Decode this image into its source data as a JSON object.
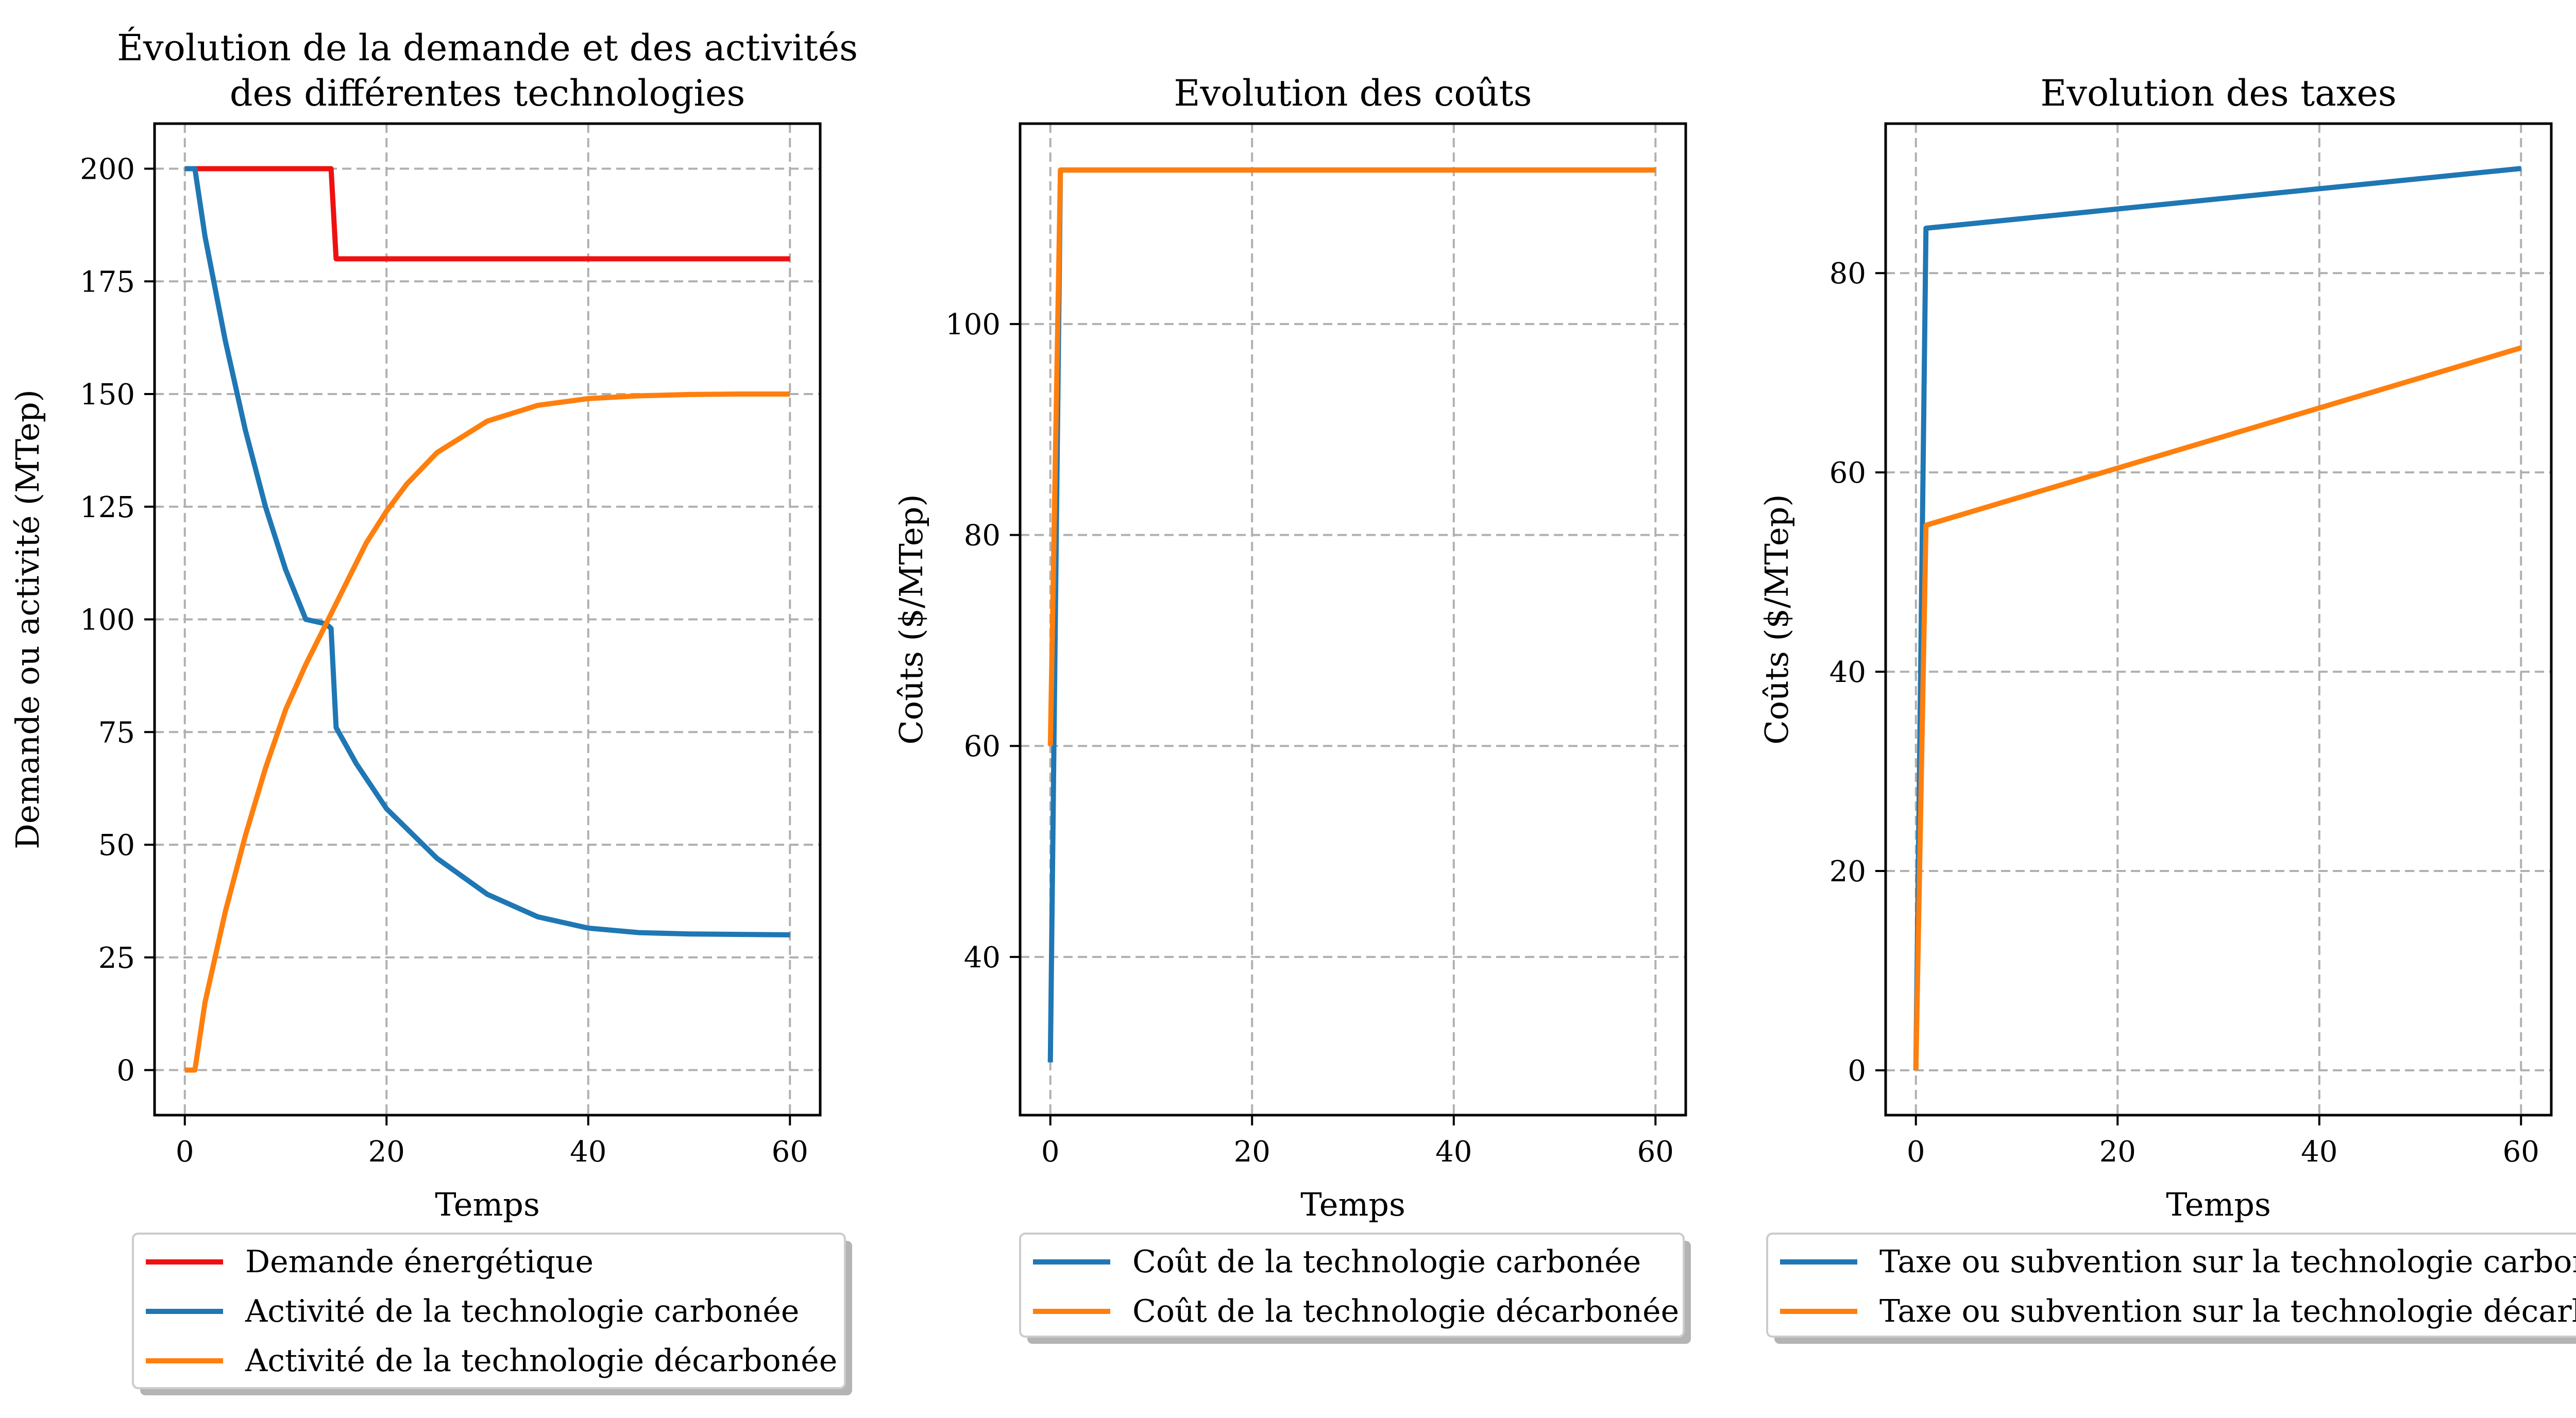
{
  "chart_data": [
    {
      "type": "line",
      "title": [
        "Évolution de la demande et des activités",
        "des différentes technologies"
      ],
      "xlabel": "Temps",
      "ylabel": "Demande ou activité (MTep)",
      "xlim": [
        -3,
        63
      ],
      "ylim": [
        -10,
        210
      ],
      "xticks": [
        0,
        20,
        40,
        60
      ],
      "yticks": [
        0,
        25,
        50,
        75,
        100,
        125,
        150,
        175,
        200
      ],
      "grid": true,
      "legend": "below",
      "series": [
        {
          "name": "Demande énergétique",
          "color": "#ee1111",
          "x": [
            0,
            1,
            14.5,
            15,
            60
          ],
          "y": [
            200,
            200,
            200,
            180,
            180
          ]
        },
        {
          "name": "Activité de la technologie carbonée",
          "color": "#1f77b4",
          "x": [
            0,
            1,
            2,
            4,
            6,
            8,
            10,
            12,
            14,
            14.5,
            15,
            17,
            20,
            25,
            30,
            35,
            40,
            45,
            50,
            55,
            60
          ],
          "y": [
            200,
            200,
            185,
            162,
            142,
            125,
            111,
            100,
            99,
            98,
            76,
            68,
            58,
            47,
            39,
            34,
            31.5,
            30.5,
            30.2,
            30.1,
            30
          ]
        },
        {
          "name": "Activité de la technologie décarbonée",
          "color": "#ff7f0e",
          "x": [
            0,
            1,
            2,
            4,
            6,
            8,
            10,
            12,
            14,
            16,
            18,
            20,
            22,
            25,
            30,
            35,
            40,
            45,
            50,
            55,
            60
          ],
          "y": [
            0,
            0,
            15,
            35,
            52,
            67,
            80,
            90,
            99,
            108,
            117,
            124,
            130,
            137,
            144,
            147.5,
            149,
            149.6,
            149.9,
            150,
            150
          ]
        }
      ]
    },
    {
      "type": "line",
      "title": [
        "Evolution des coûts"
      ],
      "xlabel": "Temps",
      "ylabel": "Coûts ($/MTep)",
      "xlim": [
        -3,
        63
      ],
      "ylim": [
        25,
        119
      ],
      "xticks": [
        0,
        20,
        40,
        60
      ],
      "yticks": [
        40,
        60,
        80,
        100
      ],
      "grid": true,
      "legend": "below",
      "series": [
        {
          "name": "Coût de la technologie carbonée",
          "color": "#1f77b4",
          "x": [
            0,
            1,
            60
          ],
          "y": [
            30,
            114.6,
            114.6
          ]
        },
        {
          "name": "Coût de la technologie décarbonée",
          "color": "#ff7f0e",
          "x": [
            0,
            1,
            60
          ],
          "y": [
            60,
            114.6,
            114.6
          ]
        }
      ]
    },
    {
      "type": "line",
      "title": [
        "Evolution des taxes"
      ],
      "xlabel": "Temps",
      "ylabel": "Coûts ($/MTep)",
      "xlim": [
        -3,
        63
      ],
      "ylim": [
        -4.5,
        95
      ],
      "xticks": [
        0,
        20,
        40,
        60
      ],
      "yticks": [
        0,
        20,
        40,
        60,
        80
      ],
      "grid": true,
      "legend": "below",
      "series": [
        {
          "name": "Taxe ou subvention sur la technologie carbonée",
          "color": "#1f77b4",
          "x": [
            0,
            1,
            60
          ],
          "y": [
            0,
            84.5,
            90.5
          ]
        },
        {
          "name": "Taxe ou subvention sur la technologie décarbonée",
          "color": "#ff7f0e",
          "x": [
            0,
            1,
            60
          ],
          "y": [
            0,
            54.7,
            72.5
          ]
        }
      ]
    }
  ]
}
